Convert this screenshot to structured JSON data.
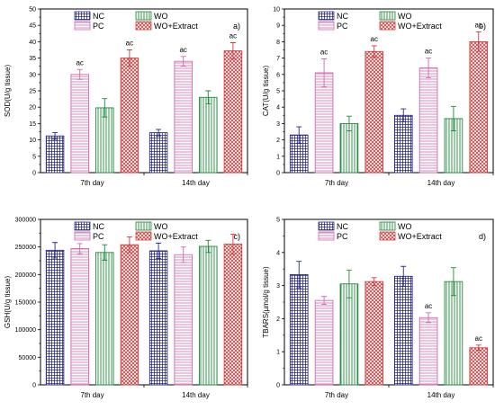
{
  "legend": [
    {
      "key": "nc",
      "label": "NC",
      "color": "#2a2a8a",
      "pattern": "grid"
    },
    {
      "key": "wo",
      "label": "WO",
      "color": "#1f8a3a",
      "pattern": "vlines"
    },
    {
      "key": "pc",
      "label": "PC",
      "color": "#d06ab0",
      "pattern": "hlines"
    },
    {
      "key": "wox",
      "label": "WO+Extract",
      "color": "#d43a3a",
      "pattern": "cross"
    }
  ],
  "chart_data": [
    {
      "type": "bar",
      "panel_label": "a)",
      "ylabel": "SOD(U/g tissue)",
      "ylim": [
        0,
        50
      ],
      "yticks": [
        0,
        5,
        10,
        15,
        20,
        25,
        30,
        35,
        40,
        45,
        50
      ],
      "categories": [
        "7th day",
        "14th day"
      ],
      "series": [
        {
          "name": "NC",
          "values": [
            11.2,
            12.2
          ],
          "errors": [
            1.0,
            1.0
          ],
          "annotations": [
            "",
            ""
          ]
        },
        {
          "name": "PC",
          "values": [
            30.0,
            34.0
          ],
          "errors": [
            1.5,
            1.5
          ],
          "annotations": [
            "ac",
            "ac"
          ]
        },
        {
          "name": "WO",
          "values": [
            19.8,
            23.0
          ],
          "errors": [
            2.8,
            2.0
          ],
          "annotations": [
            "",
            ""
          ]
        },
        {
          "name": "WO+Extract",
          "values": [
            35.0,
            37.2
          ],
          "errors": [
            2.5,
            2.5
          ],
          "annotations": [
            "ac",
            "ac"
          ]
        }
      ]
    },
    {
      "type": "bar",
      "panel_label": "b)",
      "ylabel": "CAT(U/g tissue)",
      "ylim": [
        0,
        10
      ],
      "yticks": [
        0,
        1,
        2,
        3,
        4,
        5,
        6,
        7,
        8,
        9,
        10
      ],
      "categories": [
        "7th day",
        "14th day"
      ],
      "series": [
        {
          "name": "NC",
          "values": [
            2.3,
            3.5
          ],
          "errors": [
            0.5,
            0.4
          ],
          "annotations": [
            "",
            ""
          ]
        },
        {
          "name": "PC",
          "values": [
            6.1,
            6.4
          ],
          "errors": [
            0.85,
            0.6
          ],
          "annotations": [
            "ac",
            "ac"
          ]
        },
        {
          "name": "WO",
          "values": [
            3.0,
            3.3
          ],
          "errors": [
            0.45,
            0.75
          ],
          "annotations": [
            "",
            ""
          ]
        },
        {
          "name": "WO+Extract",
          "values": [
            7.4,
            8.0
          ],
          "errors": [
            0.35,
            0.6
          ],
          "annotations": [
            "ac",
            "ac"
          ]
        }
      ]
    },
    {
      "type": "bar",
      "panel_label": "c)",
      "ylabel": "GSH(U/g tissue)",
      "ylim": [
        0,
        300000
      ],
      "yticks": [
        0,
        50000,
        100000,
        150000,
        200000,
        250000,
        300000
      ],
      "categories": [
        "7th day",
        "14th day"
      ],
      "series": [
        {
          "name": "NC",
          "values": [
            244000,
            243000
          ],
          "errors": [
            14000,
            14000
          ],
          "annotations": [
            "",
            ""
          ]
        },
        {
          "name": "PC",
          "values": [
            247000,
            236000
          ],
          "errors": [
            9000,
            14000
          ],
          "annotations": [
            "",
            ""
          ]
        },
        {
          "name": "WO",
          "values": [
            240000,
            251000
          ],
          "errors": [
            14000,
            11000
          ],
          "annotations": [
            "",
            ""
          ]
        },
        {
          "name": "WO+Extract",
          "values": [
            254000,
            255000
          ],
          "errors": [
            14000,
            18000
          ],
          "annotations": [
            "",
            ""
          ]
        }
      ]
    },
    {
      "type": "bar",
      "panel_label": "d)",
      "ylabel": "TBARS(µmol/g tissue)",
      "ylim": [
        0,
        5
      ],
      "yticks": [
        0,
        1,
        2,
        3,
        4,
        5
      ],
      "categories": [
        "7th day",
        "14th day"
      ],
      "series": [
        {
          "name": "NC",
          "values": [
            3.33,
            3.28
          ],
          "errors": [
            0.4,
            0.3
          ],
          "annotations": [
            "",
            ""
          ]
        },
        {
          "name": "PC",
          "values": [
            2.55,
            2.03
          ],
          "errors": [
            0.12,
            0.15
          ],
          "annotations": [
            "",
            "ac"
          ]
        },
        {
          "name": "WO",
          "values": [
            3.05,
            3.12
          ],
          "errors": [
            0.42,
            0.42
          ],
          "annotations": [
            "",
            ""
          ]
        },
        {
          "name": "WO+Extract",
          "values": [
            3.12,
            1.12
          ],
          "errors": [
            0.12,
            0.08
          ],
          "annotations": [
            "",
            "ac"
          ]
        }
      ]
    }
  ]
}
